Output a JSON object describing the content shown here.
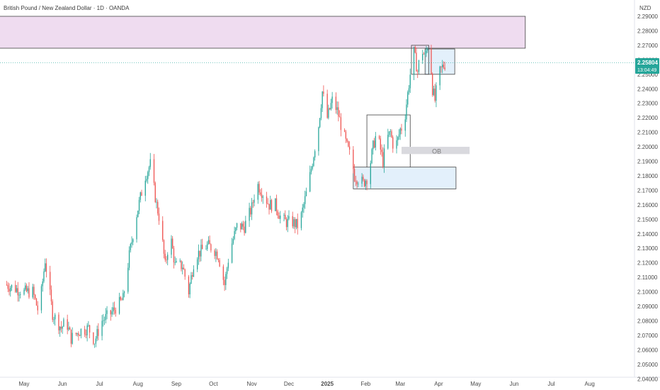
{
  "header": {
    "title": "British Pound / New Zealand Dollar · 1D · OANDA",
    "currency": "NZD"
  },
  "price_tag": {
    "price": "2.25804",
    "countdown": "13:04:49",
    "color": "#26a69a"
  },
  "colors": {
    "up": "#26a69a",
    "down": "#ef5350",
    "zone_pink": "#efdcf0",
    "zone_blue": "#e3f0fb",
    "zone_gray": "#d9d9de"
  },
  "chart_data": {
    "type": "candlestick",
    "title": "British Pound / New Zealand Dollar · 1D · OANDA",
    "ylim": [
      2.04,
      2.29
    ],
    "y_ticks": [
      "2.29000",
      "2.28000",
      "2.27000",
      "2.26000",
      "2.25000",
      "2.24000",
      "2.23000",
      "2.22000",
      "2.21000",
      "2.20000",
      "2.19000",
      "2.18000",
      "2.17000",
      "2.16000",
      "2.15000",
      "2.14000",
      "2.13000",
      "2.12000",
      "2.11000",
      "2.10000",
      "2.09000",
      "2.08000",
      "2.07000",
      "2.06000",
      "2.05000",
      "2.04000"
    ],
    "x_labels": [
      {
        "label": "May",
        "day": 0
      },
      {
        "label": "Jun",
        "day": 31
      },
      {
        "label": "Jul",
        "day": 61
      },
      {
        "label": "Aug",
        "day": 92
      },
      {
        "label": "Sep",
        "day": 123
      },
      {
        "label": "Oct",
        "day": 153
      },
      {
        "label": "Nov",
        "day": 184
      },
      {
        "label": "Dec",
        "day": 214
      },
      {
        "label": "2025",
        "day": 245
      },
      {
        "label": "Feb",
        "day": 276
      },
      {
        "label": "Mar",
        "day": 304
      },
      {
        "label": "Apr",
        "day": 335
      },
      {
        "label": "May",
        "day": 365
      },
      {
        "label": "Jun",
        "day": 396
      },
      {
        "label": "Jul",
        "day": 426
      },
      {
        "label": "Aug",
        "day": 457
      }
    ],
    "path_anchors": [
      [
        -15,
        2.105
      ],
      [
        0,
        2.1
      ],
      [
        7,
        2.1
      ],
      [
        12,
        2.085
      ],
      [
        17,
        2.122
      ],
      [
        23,
        2.085
      ],
      [
        30,
        2.075
      ],
      [
        34,
        2.08
      ],
      [
        38,
        2.068
      ],
      [
        45,
        2.073
      ],
      [
        52,
        2.075
      ],
      [
        57,
        2.066
      ],
      [
        63,
        2.08
      ],
      [
        70,
        2.085
      ],
      [
        80,
        2.095
      ],
      [
        85,
        2.125
      ],
      [
        90,
        2.15
      ],
      [
        98,
        2.18
      ],
      [
        102,
        2.188
      ],
      [
        107,
        2.16
      ],
      [
        110,
        2.148
      ],
      [
        114,
        2.118
      ],
      [
        118,
        2.14
      ],
      [
        122,
        2.118
      ],
      [
        128,
        2.118
      ],
      [
        133,
        2.1
      ],
      [
        138,
        2.125
      ],
      [
        143,
        2.128
      ],
      [
        148,
        2.132
      ],
      [
        153,
        2.13
      ],
      [
        157,
        2.125
      ],
      [
        162,
        2.105
      ],
      [
        166,
        2.128
      ],
      [
        172,
        2.145
      ],
      [
        178,
        2.145
      ],
      [
        184,
        2.158
      ],
      [
        188,
        2.175
      ],
      [
        193,
        2.168
      ],
      [
        198,
        2.16
      ],
      [
        203,
        2.16
      ],
      [
        208,
        2.15
      ],
      [
        212,
        2.148
      ],
      [
        217,
        2.148
      ],
      [
        222,
        2.145
      ],
      [
        226,
        2.16
      ],
      [
        230,
        2.175
      ],
      [
        234,
        2.195
      ],
      [
        238,
        2.215
      ],
      [
        241,
        2.238
      ],
      [
        245,
        2.22
      ],
      [
        249,
        2.232
      ],
      [
        253,
        2.225
      ],
      [
        257,
        2.212
      ],
      [
        261,
        2.2
      ],
      [
        265,
        2.19
      ],
      [
        267,
        2.18
      ],
      [
        270,
        2.178
      ],
      [
        274,
        2.175
      ],
      [
        278,
        2.18
      ],
      [
        282,
        2.2
      ],
      [
        285,
        2.21
      ],
      [
        288,
        2.198
      ],
      [
        290,
        2.19
      ],
      [
        293,
        2.205
      ],
      [
        296,
        2.21
      ],
      [
        299,
        2.198
      ],
      [
        302,
        2.205
      ],
      [
        304,
        2.212
      ],
      [
        307,
        2.215
      ],
      [
        309,
        2.23
      ],
      [
        312,
        2.25
      ],
      [
        315,
        2.265
      ],
      [
        318,
        2.252
      ],
      [
        321,
        2.268
      ],
      [
        324,
        2.262
      ],
      [
        326,
        2.27
      ],
      [
        328,
        2.265
      ],
      [
        330,
        2.24
      ],
      [
        332,
        2.232
      ],
      [
        335,
        2.25
      ],
      [
        338,
        2.255
      ],
      [
        341,
        2.258
      ]
    ],
    "zones": [
      {
        "name": "supply-zone",
        "color": "#efdcf0",
        "day_start": -20,
        "day_end": 405,
        "top": 2.29,
        "bottom": 2.268
      },
      {
        "name": "box-top",
        "color": "#e3f0fb",
        "day_start": 324,
        "day_end": 348,
        "top": 2.2675,
        "bottom": 2.25
      },
      {
        "name": "box-consolidation",
        "color": "none",
        "day_start": 277,
        "day_end": 312,
        "top": 2.222,
        "bottom": 2.184
      },
      {
        "name": "box-demand",
        "color": "#e3f0fb",
        "day_start": 266,
        "day_end": 349,
        "top": 2.186,
        "bottom": 2.171
      },
      {
        "name": "box-march",
        "color": "none",
        "day_start": 313,
        "day_end": 327,
        "top": 2.27,
        "bottom": 2.25
      }
    ],
    "ob_label": "OB",
    "ob_zone": {
      "day_start": 305,
      "day_end": 360,
      "top": 2.2,
      "bottom": 2.195
    }
  }
}
